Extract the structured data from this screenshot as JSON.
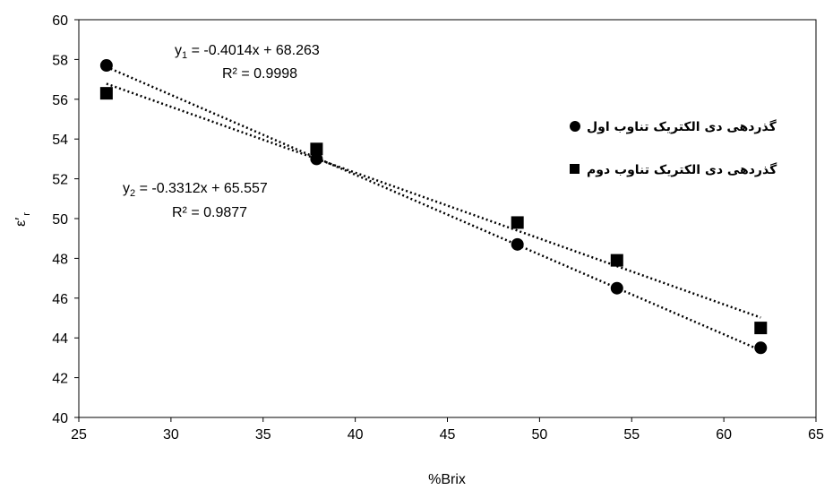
{
  "chart_data": {
    "type": "scatter",
    "xlabel": "%Brix",
    "ylabel_main": "ε′",
    "ylabel_sub": "r",
    "xlim": [
      25,
      65
    ],
    "ylim": [
      40,
      60
    ],
    "x_ticks": [
      25,
      30,
      35,
      40,
      45,
      50,
      55,
      60,
      65
    ],
    "y_ticks": [
      40,
      42,
      44,
      46,
      48,
      50,
      52,
      54,
      56,
      58,
      60
    ],
    "grid": false,
    "legend_position": "right",
    "series": [
      {
        "name": "گذردهی دی الکتریک تناوب اول",
        "marker": "circle",
        "x": [
          26.5,
          37.9,
          48.8,
          54.2,
          62.0
        ],
        "y": [
          57.7,
          53.0,
          48.7,
          46.5,
          43.5
        ],
        "trendline": {
          "slope": -0.4014,
          "intercept": 68.263
        },
        "equation": {
          "prefix": "y",
          "sub": "1",
          "rest": " = -0.4014x + 68.263"
        },
        "r2": "R² = 0.9998"
      },
      {
        "name": "گذردهی دی الکتریک تناوب دوم",
        "marker": "square",
        "x": [
          26.5,
          37.9,
          48.8,
          54.2,
          62.0
        ],
        "y": [
          56.3,
          53.5,
          49.8,
          47.9,
          44.5
        ],
        "trendline": {
          "slope": -0.3312,
          "intercept": 65.557
        },
        "equation": {
          "prefix": "y",
          "sub": "2",
          "rest": " = -0.3312x + 65.557"
        },
        "r2": "R² = 0.9877"
      }
    ]
  }
}
